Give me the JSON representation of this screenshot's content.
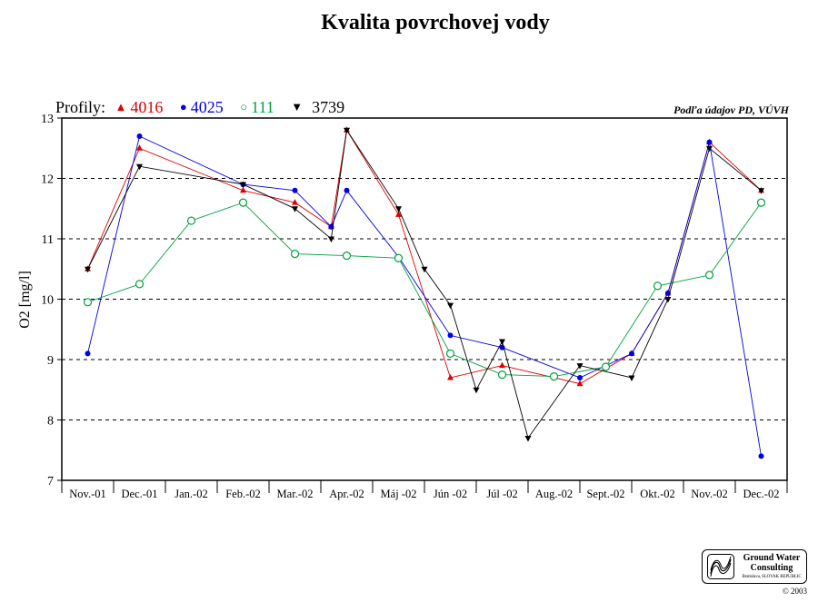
{
  "chart_data": {
    "type": "line",
    "title": "Kvalita povrchovej vody",
    "ylabel": "O2 [mg/l]",
    "xlabel": "",
    "ylim": [
      7,
      13
    ],
    "yticks": [
      7,
      8,
      9,
      10,
      11,
      12,
      13
    ],
    "grid": "horizontal dashed",
    "legend_title": "Profily:",
    "legend_placement": "top-left",
    "categories": [
      "Nov.-01",
      "Dec.-01",
      "Jan.-02",
      "Feb.-02",
      "Mar.-02",
      "Apr.-02",
      "Máj -02",
      "Jún -02",
      "Júl -02",
      "Aug.-02",
      "Sept.-02",
      "Okt.-02",
      "Nov.-02",
      "Dec.-02"
    ],
    "series": [
      {
        "name": "4016",
        "color": "#e00000",
        "marker": "triangle-up",
        "points": [
          [
            0.5,
            10.5
          ],
          [
            1.5,
            12.5
          ],
          [
            3.5,
            11.8
          ],
          [
            4.5,
            11.6
          ],
          [
            5.2,
            11.2
          ],
          [
            5.5,
            12.8
          ],
          [
            6.5,
            11.4
          ],
          [
            7.5,
            8.7
          ],
          [
            8.5,
            8.9
          ],
          [
            10.0,
            8.6
          ],
          [
            11.0,
            9.1
          ],
          [
            11.7,
            10.1
          ],
          [
            12.5,
            12.6
          ],
          [
            13.5,
            11.8
          ]
        ]
      },
      {
        "name": "4025",
        "color": "#0000e0",
        "marker": "filled-circle",
        "points": [
          [
            0.5,
            9.1
          ],
          [
            1.5,
            12.7
          ],
          [
            3.5,
            11.9
          ],
          [
            4.5,
            11.8
          ],
          [
            5.2,
            11.2
          ],
          [
            5.5,
            11.8
          ],
          [
            6.5,
            10.7
          ],
          [
            7.5,
            9.4
          ],
          [
            8.5,
            9.2
          ],
          [
            10.0,
            8.7
          ],
          [
            11.0,
            9.1
          ],
          [
            11.7,
            10.1
          ],
          [
            12.5,
            12.6
          ],
          [
            13.5,
            7.4
          ]
        ]
      },
      {
        "name": "111",
        "color": "#00a040",
        "marker": "open-circle",
        "points": [
          [
            0.5,
            9.95
          ],
          [
            1.5,
            10.25
          ],
          [
            2.5,
            11.3
          ],
          [
            3.5,
            11.6
          ],
          [
            4.5,
            10.75
          ],
          [
            5.5,
            10.72
          ],
          [
            6.5,
            10.68
          ],
          [
            7.5,
            9.1
          ],
          [
            8.5,
            8.75
          ],
          [
            9.5,
            8.72
          ],
          [
            10.5,
            8.88
          ],
          [
            11.5,
            10.22
          ],
          [
            12.5,
            10.4
          ],
          [
            13.5,
            11.6
          ]
        ]
      },
      {
        "name": "3739",
        "color": "#000000",
        "marker": "triangle-down",
        "points": [
          [
            0.5,
            10.5
          ],
          [
            1.5,
            12.2
          ],
          [
            3.5,
            11.9
          ],
          [
            4.5,
            11.5
          ],
          [
            5.2,
            11.0
          ],
          [
            5.5,
            12.8
          ],
          [
            6.5,
            11.5
          ],
          [
            7.0,
            10.5
          ],
          [
            7.5,
            9.9
          ],
          [
            8.0,
            8.5
          ],
          [
            8.5,
            9.3
          ],
          [
            9.0,
            7.7
          ],
          [
            10.0,
            8.9
          ],
          [
            11.0,
            8.7
          ],
          [
            11.7,
            10.0
          ],
          [
            12.5,
            12.5
          ],
          [
            13.5,
            11.8
          ]
        ]
      }
    ],
    "annotation": "Podľa údajov PD, VÚVH"
  },
  "logo": {
    "name_line1": "Ground Water",
    "name_line2": "Consulting",
    "subtitle": "Bratislava, SLOVAK REPUBLIC"
  },
  "copyright": "© 2003"
}
